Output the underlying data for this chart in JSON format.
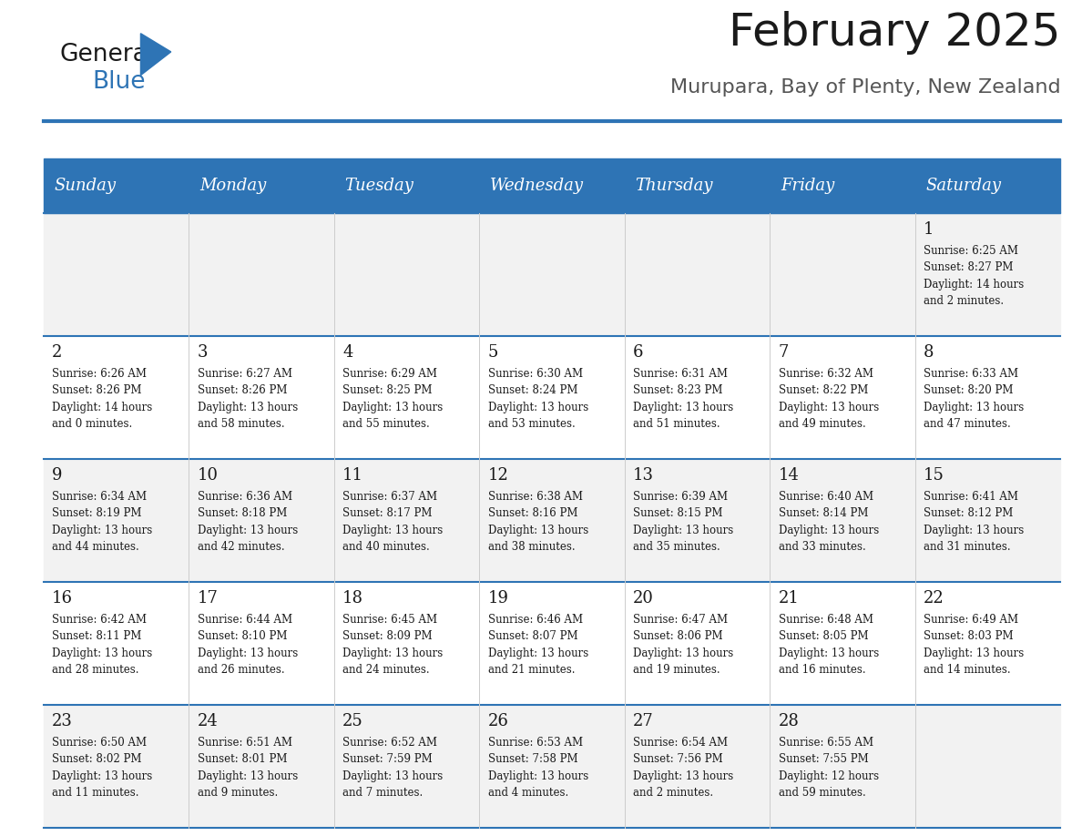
{
  "title": "February 2025",
  "subtitle": "Murupara, Bay of Plenty, New Zealand",
  "header_bg": "#2E74B5",
  "header_text_color": "#FFFFFF",
  "cell_bg_even": "#F2F2F2",
  "cell_bg_odd": "#FFFFFF",
  "separator_color": "#2E74B5",
  "day_headers": [
    "Sunday",
    "Monday",
    "Tuesday",
    "Wednesday",
    "Thursday",
    "Friday",
    "Saturday"
  ],
  "calendar": [
    [
      {
        "day": null,
        "info": null
      },
      {
        "day": null,
        "info": null
      },
      {
        "day": null,
        "info": null
      },
      {
        "day": null,
        "info": null
      },
      {
        "day": null,
        "info": null
      },
      {
        "day": null,
        "info": null
      },
      {
        "day": 1,
        "info": "Sunrise: 6:25 AM\nSunset: 8:27 PM\nDaylight: 14 hours\nand 2 minutes."
      }
    ],
    [
      {
        "day": 2,
        "info": "Sunrise: 6:26 AM\nSunset: 8:26 PM\nDaylight: 14 hours\nand 0 minutes."
      },
      {
        "day": 3,
        "info": "Sunrise: 6:27 AM\nSunset: 8:26 PM\nDaylight: 13 hours\nand 58 minutes."
      },
      {
        "day": 4,
        "info": "Sunrise: 6:29 AM\nSunset: 8:25 PM\nDaylight: 13 hours\nand 55 minutes."
      },
      {
        "day": 5,
        "info": "Sunrise: 6:30 AM\nSunset: 8:24 PM\nDaylight: 13 hours\nand 53 minutes."
      },
      {
        "day": 6,
        "info": "Sunrise: 6:31 AM\nSunset: 8:23 PM\nDaylight: 13 hours\nand 51 minutes."
      },
      {
        "day": 7,
        "info": "Sunrise: 6:32 AM\nSunset: 8:22 PM\nDaylight: 13 hours\nand 49 minutes."
      },
      {
        "day": 8,
        "info": "Sunrise: 6:33 AM\nSunset: 8:20 PM\nDaylight: 13 hours\nand 47 minutes."
      }
    ],
    [
      {
        "day": 9,
        "info": "Sunrise: 6:34 AM\nSunset: 8:19 PM\nDaylight: 13 hours\nand 44 minutes."
      },
      {
        "day": 10,
        "info": "Sunrise: 6:36 AM\nSunset: 8:18 PM\nDaylight: 13 hours\nand 42 minutes."
      },
      {
        "day": 11,
        "info": "Sunrise: 6:37 AM\nSunset: 8:17 PM\nDaylight: 13 hours\nand 40 minutes."
      },
      {
        "day": 12,
        "info": "Sunrise: 6:38 AM\nSunset: 8:16 PM\nDaylight: 13 hours\nand 38 minutes."
      },
      {
        "day": 13,
        "info": "Sunrise: 6:39 AM\nSunset: 8:15 PM\nDaylight: 13 hours\nand 35 minutes."
      },
      {
        "day": 14,
        "info": "Sunrise: 6:40 AM\nSunset: 8:14 PM\nDaylight: 13 hours\nand 33 minutes."
      },
      {
        "day": 15,
        "info": "Sunrise: 6:41 AM\nSunset: 8:12 PM\nDaylight: 13 hours\nand 31 minutes."
      }
    ],
    [
      {
        "day": 16,
        "info": "Sunrise: 6:42 AM\nSunset: 8:11 PM\nDaylight: 13 hours\nand 28 minutes."
      },
      {
        "day": 17,
        "info": "Sunrise: 6:44 AM\nSunset: 8:10 PM\nDaylight: 13 hours\nand 26 minutes."
      },
      {
        "day": 18,
        "info": "Sunrise: 6:45 AM\nSunset: 8:09 PM\nDaylight: 13 hours\nand 24 minutes."
      },
      {
        "day": 19,
        "info": "Sunrise: 6:46 AM\nSunset: 8:07 PM\nDaylight: 13 hours\nand 21 minutes."
      },
      {
        "day": 20,
        "info": "Sunrise: 6:47 AM\nSunset: 8:06 PM\nDaylight: 13 hours\nand 19 minutes."
      },
      {
        "day": 21,
        "info": "Sunrise: 6:48 AM\nSunset: 8:05 PM\nDaylight: 13 hours\nand 16 minutes."
      },
      {
        "day": 22,
        "info": "Sunrise: 6:49 AM\nSunset: 8:03 PM\nDaylight: 13 hours\nand 14 minutes."
      }
    ],
    [
      {
        "day": 23,
        "info": "Sunrise: 6:50 AM\nSunset: 8:02 PM\nDaylight: 13 hours\nand 11 minutes."
      },
      {
        "day": 24,
        "info": "Sunrise: 6:51 AM\nSunset: 8:01 PM\nDaylight: 13 hours\nand 9 minutes."
      },
      {
        "day": 25,
        "info": "Sunrise: 6:52 AM\nSunset: 7:59 PM\nDaylight: 13 hours\nand 7 minutes."
      },
      {
        "day": 26,
        "info": "Sunrise: 6:53 AM\nSunset: 7:58 PM\nDaylight: 13 hours\nand 4 minutes."
      },
      {
        "day": 27,
        "info": "Sunrise: 6:54 AM\nSunset: 7:56 PM\nDaylight: 13 hours\nand 2 minutes."
      },
      {
        "day": 28,
        "info": "Sunrise: 6:55 AM\nSunset: 7:55 PM\nDaylight: 12 hours\nand 59 minutes."
      },
      {
        "day": null,
        "info": null
      }
    ]
  ],
  "logo_color_general": "#1a1a1a",
  "logo_color_blue": "#2E74B5",
  "title_fontsize": 36,
  "subtitle_fontsize": 16,
  "header_fontsize": 13,
  "day_number_fontsize": 13,
  "cell_text_fontsize": 8.5
}
